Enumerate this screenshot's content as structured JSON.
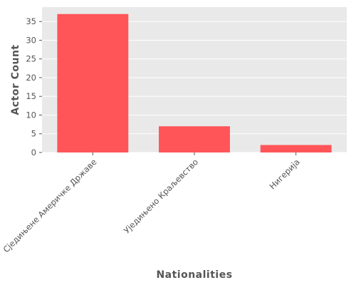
{
  "chart_data": {
    "type": "bar",
    "title": "",
    "xlabel": "Nationalities",
    "ylabel": "Actor Count",
    "categories": [
      "Сједињене Америчке Државе",
      "Уједињено Краљевство",
      "Нигерија"
    ],
    "values": [
      37,
      7,
      2
    ],
    "ylim": [
      0,
      38.85
    ],
    "yticks": [
      0,
      5,
      10,
      15,
      20,
      25,
      30,
      35
    ],
    "grid": true,
    "legend": "none",
    "colors": {
      "bar": "#ff5558",
      "panel": "#e9e9e9",
      "grid": "#ffffff",
      "text": "#555555"
    }
  }
}
